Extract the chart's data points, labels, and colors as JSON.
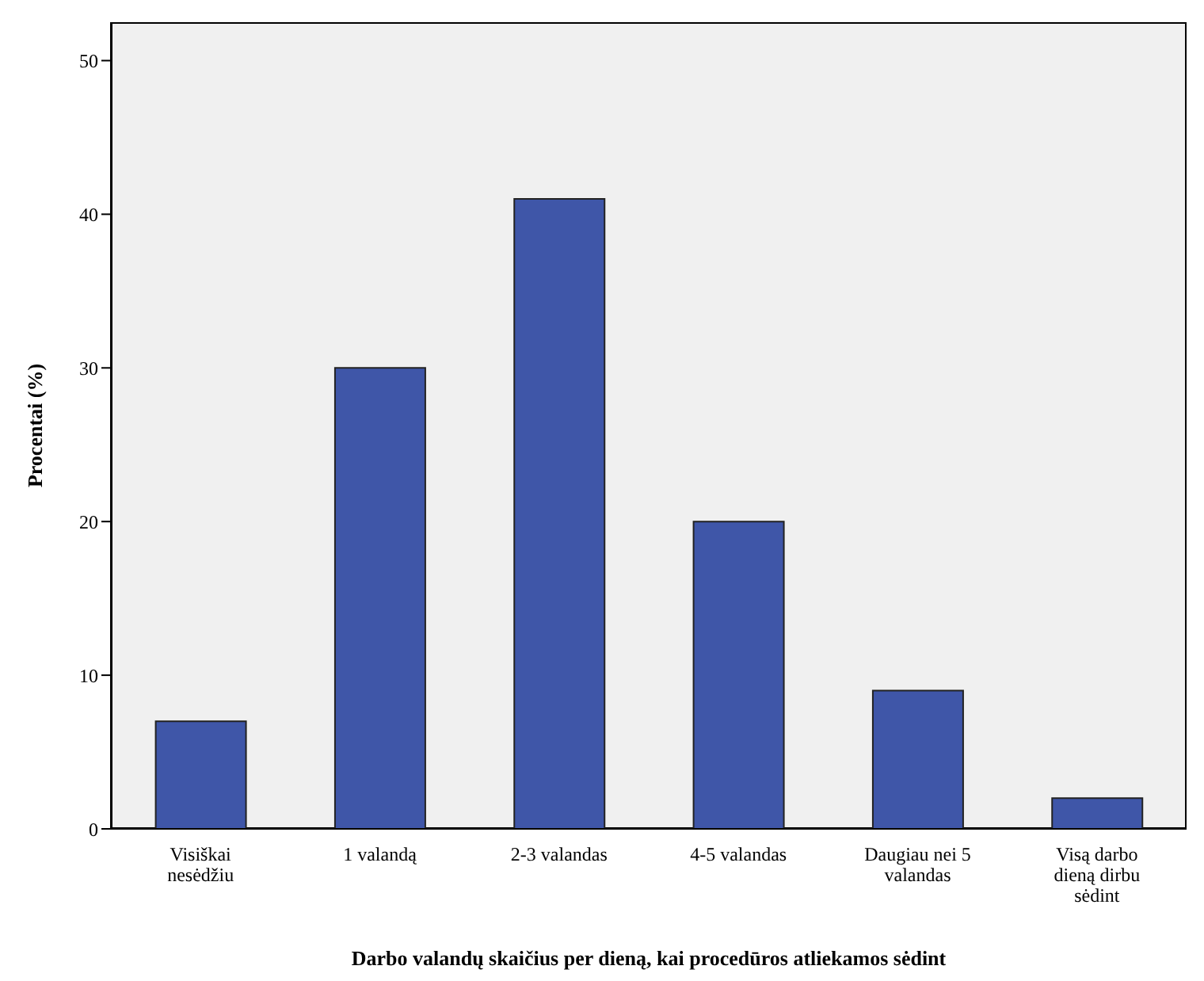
{
  "chart_data": {
    "type": "bar",
    "xlabel": "Darbo valandų skaičius per dieną, kai procedūros atliekamos sėdint",
    "ylabel": "Procentai (%)",
    "categories": [
      "Visiškai nesėdžiu",
      "1 valandą",
      "2-3 valandas",
      "4-5 valandas",
      "Daugiau nei 5 valandas",
      "Visą darbo dieną dirbu sėdint"
    ],
    "values": [
      7,
      30,
      41,
      20,
      9,
      2
    ],
    "color": "#3f56a8",
    "ylim": [
      0,
      52.5
    ],
    "yticks": [
      0,
      10,
      20,
      30,
      40,
      50
    ],
    "grid": false,
    "legend": false
  }
}
